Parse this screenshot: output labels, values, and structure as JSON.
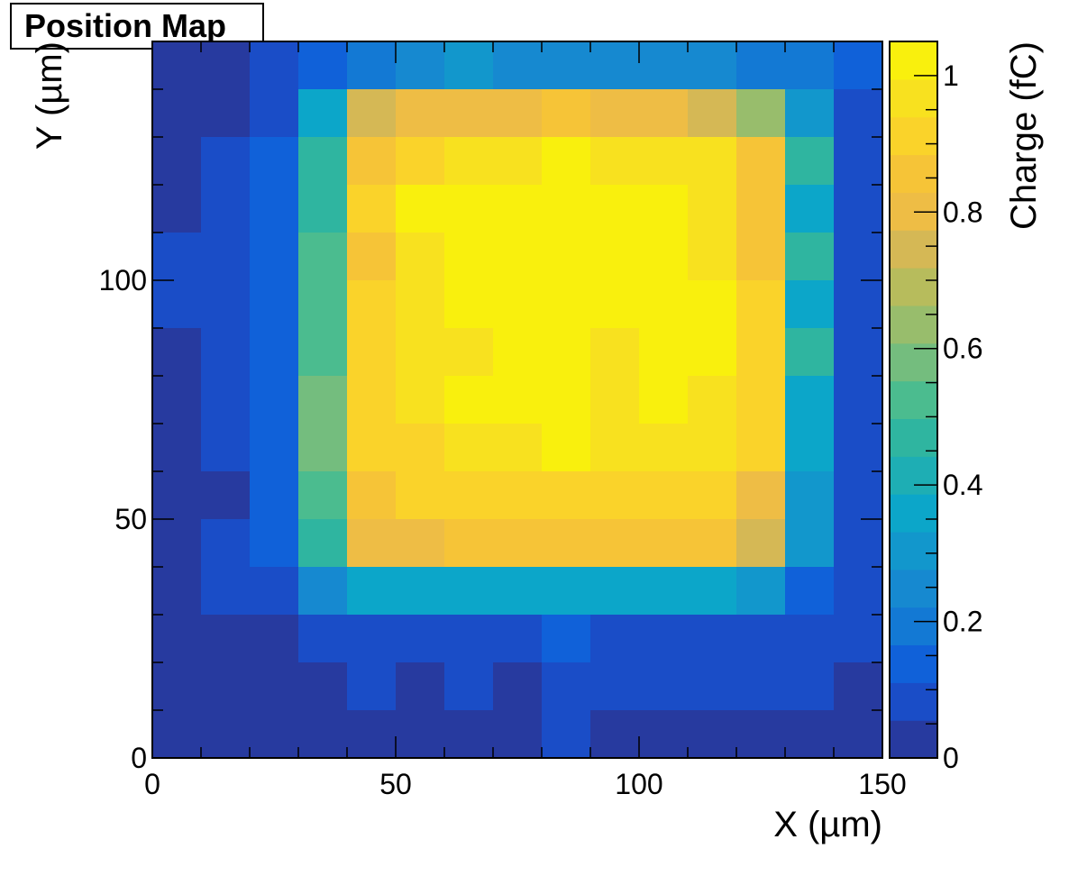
{
  "chart_data": {
    "type": "heatmap",
    "title": "Position Map",
    "xlabel": "X (µm)",
    "ylabel": "Y (µm)",
    "zlabel": "Charge (fC)",
    "xlim": [
      0,
      150
    ],
    "ylim": [
      0,
      150
    ],
    "zlim": [
      0,
      1.05
    ],
    "bin_size": 10,
    "x_ticks": [
      0,
      50,
      100,
      150
    ],
    "y_ticks": [
      0,
      50,
      100,
      150
    ],
    "x_tick_labels": [
      "0",
      "50",
      "100",
      "150"
    ],
    "y_tick_labels": [
      "0",
      "50",
      "100",
      ""
    ],
    "z_ticks": [
      0,
      0.2,
      0.4,
      0.6,
      0.8,
      1
    ],
    "z_tick_labels": [
      "0",
      "0.2",
      "0.4",
      "0.6",
      "0.8",
      "1"
    ],
    "palette": [
      "#273a9f",
      "#1a4dc7",
      "#1061d9",
      "#1379d4",
      "#1689d0",
      "#1297cc",
      "#0ca6c9",
      "#1eaeb4",
      "#2fb5a0",
      "#4bbc8f",
      "#74bd7e",
      "#98bd6c",
      "#b7bc5c",
      "#d5b855",
      "#eebd45",
      "#f6c437",
      "#fad32a",
      "#f8e11f",
      "#f9f00d"
    ],
    "values_note": "rows listed from top (y 140-150) to bottom (y 0-10); each row lists x bins 0-10 ... 140-150",
    "values": [
      [
        0.01,
        0.01,
        0.08,
        0.12,
        0.18,
        0.23,
        0.28,
        0.23,
        0.23,
        0.23,
        0.23,
        0.23,
        0.18,
        0.18,
        0.12
      ],
      [
        0.01,
        0.01,
        0.06,
        0.37,
        0.72,
        0.82,
        0.82,
        0.82,
        0.87,
        0.82,
        0.82,
        0.72,
        0.64,
        0.28,
        0.08
      ],
      [
        0.01,
        0.06,
        0.12,
        0.45,
        0.87,
        0.92,
        0.97,
        0.97,
        1.04,
        0.97,
        0.97,
        0.97,
        0.87,
        0.45,
        0.08
      ],
      [
        0.01,
        0.06,
        0.12,
        0.45,
        0.92,
        1.04,
        1.04,
        1.04,
        1.04,
        1.04,
        1.04,
        0.97,
        0.87,
        0.38,
        0.08
      ],
      [
        0.06,
        0.06,
        0.12,
        0.5,
        0.87,
        0.97,
        1.04,
        1.04,
        1.04,
        1.04,
        1.04,
        0.97,
        0.87,
        0.45,
        0.08
      ],
      [
        0.06,
        0.06,
        0.12,
        0.5,
        0.92,
        0.97,
        1.04,
        1.04,
        1.04,
        1.04,
        1.04,
        1.04,
        0.92,
        0.38,
        0.08
      ],
      [
        0.01,
        0.06,
        0.12,
        0.5,
        0.92,
        0.97,
        0.97,
        1.04,
        1.04,
        0.97,
        1.04,
        1.04,
        0.92,
        0.45,
        0.08
      ],
      [
        0.01,
        0.06,
        0.12,
        0.57,
        0.92,
        0.97,
        1.04,
        1.04,
        1.04,
        0.97,
        1.04,
        0.97,
        0.92,
        0.38,
        0.08
      ],
      [
        0.01,
        0.06,
        0.12,
        0.57,
        0.92,
        0.92,
        0.97,
        0.97,
        1.04,
        0.97,
        0.97,
        0.97,
        0.92,
        0.38,
        0.08
      ],
      [
        0.01,
        0.01,
        0.12,
        0.5,
        0.87,
        0.92,
        0.92,
        0.92,
        0.92,
        0.92,
        0.92,
        0.92,
        0.82,
        0.28,
        0.08
      ],
      [
        0.01,
        0.06,
        0.12,
        0.45,
        0.82,
        0.82,
        0.87,
        0.87,
        0.87,
        0.87,
        0.87,
        0.87,
        0.72,
        0.28,
        0.08
      ],
      [
        0.01,
        0.06,
        0.06,
        0.23,
        0.38,
        0.38,
        0.38,
        0.38,
        0.38,
        0.38,
        0.38,
        0.38,
        0.33,
        0.12,
        0.08
      ],
      [
        0.01,
        0.01,
        0.01,
        0.06,
        0.06,
        0.06,
        0.06,
        0.06,
        0.12,
        0.06,
        0.06,
        0.06,
        0.06,
        0.06,
        0.06
      ],
      [
        0.01,
        0.01,
        0.01,
        0.01,
        0.06,
        0.01,
        0.06,
        0.01,
        0.06,
        0.06,
        0.06,
        0.06,
        0.06,
        0.06,
        0.01
      ],
      [
        0.01,
        0.01,
        0.01,
        0.01,
        0.01,
        0.01,
        0.01,
        0.01,
        0.06,
        0.01,
        0.01,
        0.01,
        0.01,
        0.01,
        0.01
      ]
    ]
  }
}
